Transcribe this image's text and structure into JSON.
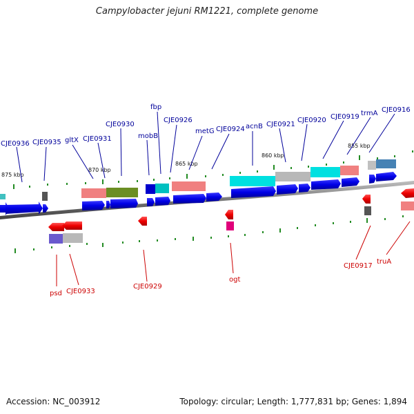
{
  "title": "Campylobacter jejuni RM1221, complete genome",
  "footer": {
    "accession": "Accession: NC_003912",
    "topology": "Topology: circular; Length: 1,777,831 bp; Genes: 1,894"
  },
  "scale_labels": [
    "875 kbp",
    "870 kbp",
    "865 kbp",
    "860 kbp",
    "855 kbp"
  ],
  "gene_labels_top": [
    "CJE0936",
    "CJE0935",
    "gltX",
    "CJE0931",
    "CJE0930",
    "mobB",
    "fbp",
    "CJE0926",
    "metG",
    "CJE0924",
    "acnB",
    "CJE0921",
    "CJE0920",
    "CJE0919",
    "trmA",
    "CJE0916"
  ],
  "gene_labels_bottom": [
    "psd",
    "CJE0933",
    "CJE0929",
    "ogt",
    "CJE0917",
    "truA"
  ],
  "colors": {
    "forward": "#0000ee",
    "reverse": "#ee0000",
    "label_top": "#00009a",
    "label_bottom": "#cc0000",
    "tick": "#228b22"
  }
}
